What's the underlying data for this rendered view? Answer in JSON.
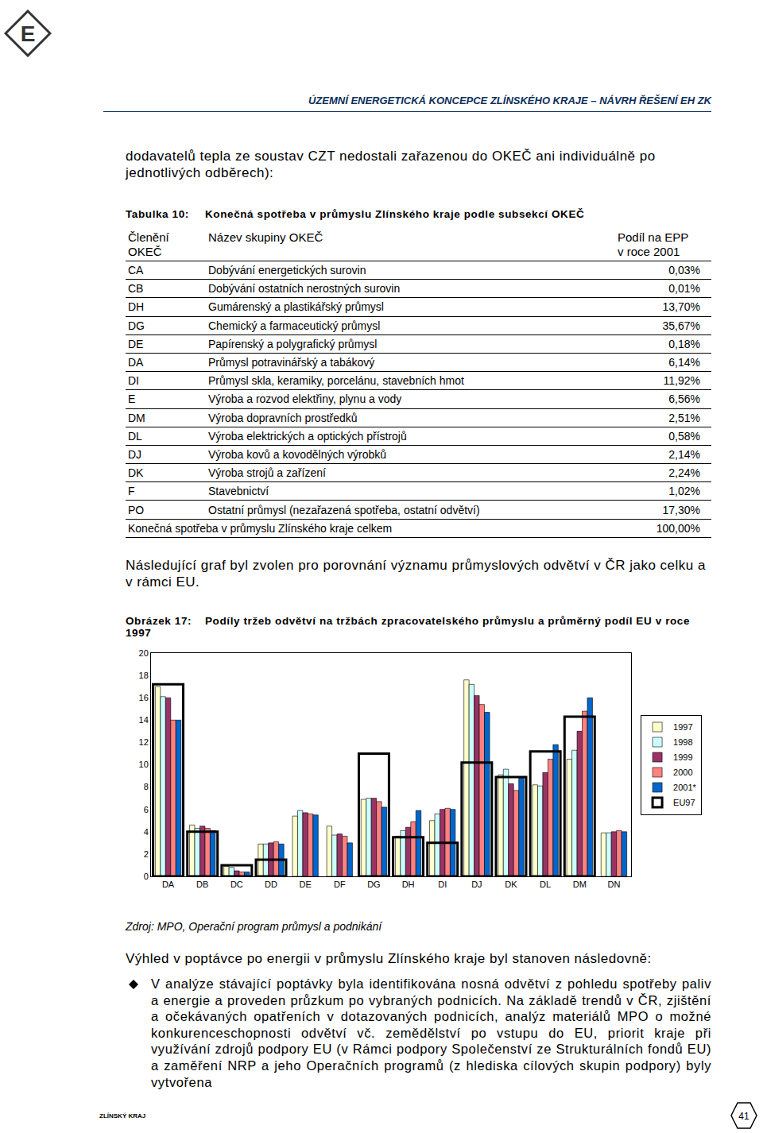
{
  "logo": "E",
  "header": "ÚZEMNÍ ENERGETICKÁ KONCEPCE ZLÍNSKÉHO KRAJE – NÁVRH ŘEŠENÍ EH ZK",
  "paragraph1": "dodavatelů tepla ze soustav CZT nedostali zařazenou do OKEČ ani individuálně po jednotlivých odběrech):",
  "table": {
    "label": "Tabulka 10:",
    "title": "Konečná spotřeba v průmyslu Zlínského kraje podle subsekcí OKEČ",
    "header": [
      [
        "Členění",
        "OKEČ"
      ],
      [
        "Název skupiny OKEČ"
      ],
      [
        "Podíl na EPP",
        "v roce 2001"
      ]
    ],
    "rows": [
      [
        "CA",
        "Dobývání energetických surovin",
        "0,03%"
      ],
      [
        "CB",
        "Dobývání ostatních nerostných surovin",
        "0,01%"
      ],
      [
        "DH",
        "Gumárenský a plastikářský průmysl",
        "13,70%"
      ],
      [
        "DG",
        "Chemický a farmaceutický průmysl",
        "35,67%"
      ],
      [
        "DE",
        "Papírenský a polygrafický průmysl",
        "0,18%"
      ],
      [
        "DA",
        "Průmysl potravinářský a tabákový",
        "6,14%"
      ],
      [
        "DI",
        "Průmysl skla, keramiky, porcelánu, stavebních hmot",
        "11,92%"
      ],
      [
        "E",
        "Výroba a rozvod elektřiny, plynu a vody",
        "6,56%"
      ],
      [
        "DM",
        "Výroba dopravních prostředků",
        "2,51%"
      ],
      [
        "DL",
        "Výroba elektrických a optických přístrojů",
        "0,58%"
      ],
      [
        "DJ",
        "Výroba kovů a kovodělných výrobků",
        "2,14%"
      ],
      [
        "DK",
        "Výroba strojů a zařízení",
        "2,24%"
      ],
      [
        "F",
        "Stavebnictví",
        "1,02%"
      ],
      [
        "PO",
        "Ostatní průmysl (nezařazená spotřeba, ostatní odvětví)",
        "17,30%"
      ]
    ],
    "total": [
      "Konečná spotřeba v průmyslu Zlínského kraje celkem",
      "100,00%"
    ]
  },
  "paragraph2": "Následující graf byl zvolen pro porovnání významu průmyslových odvětví v ČR jako celku a v rámci EU.",
  "figure": {
    "label": "Obrázek 17:",
    "title": "Podíly tržeb odvětví na tržbách zpracovatelského průmyslu a průměrný podíl EU v roce 1997"
  },
  "chart_data": {
    "type": "bar",
    "categories": [
      "DA",
      "DB",
      "DC",
      "DD",
      "DE",
      "DF",
      "DG",
      "DH",
      "DI",
      "DJ",
      "DK",
      "DL",
      "DM",
      "DN"
    ],
    "series": [
      {
        "name": "1997",
        "color": "#ffffcc",
        "values": [
          17.0,
          4.6,
          0.9,
          2.9,
          5.4,
          4.5,
          6.9,
          3.6,
          5.0,
          17.6,
          9.1,
          8.2,
          10.5,
          3.9
        ]
      },
      {
        "name": "1998",
        "color": "#ccffff",
        "values": [
          16.1,
          4.3,
          0.8,
          2.9,
          5.9,
          3.7,
          7.0,
          4.1,
          5.6,
          17.2,
          9.6,
          8.1,
          11.3,
          3.9
        ]
      },
      {
        "name": "1999",
        "color": "#993366",
        "values": [
          16.0,
          4.5,
          0.5,
          3.0,
          5.7,
          3.8,
          7.0,
          4.4,
          6.0,
          16.2,
          8.3,
          9.3,
          13.0,
          4.0
        ]
      },
      {
        "name": "2000",
        "color": "#ff8080",
        "values": [
          14.0,
          4.3,
          0.4,
          3.1,
          5.6,
          3.6,
          6.7,
          4.9,
          6.1,
          15.4,
          7.7,
          10.5,
          14.8,
          4.1
        ]
      },
      {
        "name": "2001*",
        "color": "#0066cc",
        "values": [
          14.0,
          4.1,
          0.4,
          2.9,
          5.5,
          3.0,
          6.2,
          5.9,
          6.0,
          14.7,
          8.8,
          11.8,
          16.0,
          4.0
        ]
      },
      {
        "name": "EU97",
        "color": "#000000",
        "marker": "outline",
        "values": [
          17.2,
          4.0,
          1.0,
          1.5,
          null,
          null,
          11.0,
          3.5,
          3.0,
          10.2,
          8.9,
          11.2,
          14.3,
          null
        ]
      }
    ],
    "ylim": [
      0,
      20
    ],
    "yticks": [
      0,
      2,
      4,
      6,
      8,
      10,
      12,
      14,
      16,
      18,
      20
    ],
    "grid": false,
    "legend": "right"
  },
  "source": "Zdroj: MPO, Operační program průmysl a podnikání",
  "paragraph3": "Výhled v poptávce po energii v průmyslu Zlínského kraje byl stanoven následovně:",
  "bullet": "V analýze stávající poptávky byla identifikována nosná odvětví z pohledu spotřeby paliv a energie a proveden průzkum po vybraných podnicích. Na základě trendů v ČR, zjištění a očekávaných opatřeních v dotazovaných podnicích, analýz materiálů MPO o možné konkurenceschopnosti odvětví vč. zemědělství po vstupu do EU, priorit kraje při využívání zdrojů podpory EU (v Rámci podpory Společenství ze Strukturálních fondů EU) a zaměření NRP a jeho Operačních programů (z hlediska cílových skupin podpory) byly vytvořena",
  "footer": {
    "left": "ZLÍNSKÝ KRAJ",
    "page": "41"
  }
}
